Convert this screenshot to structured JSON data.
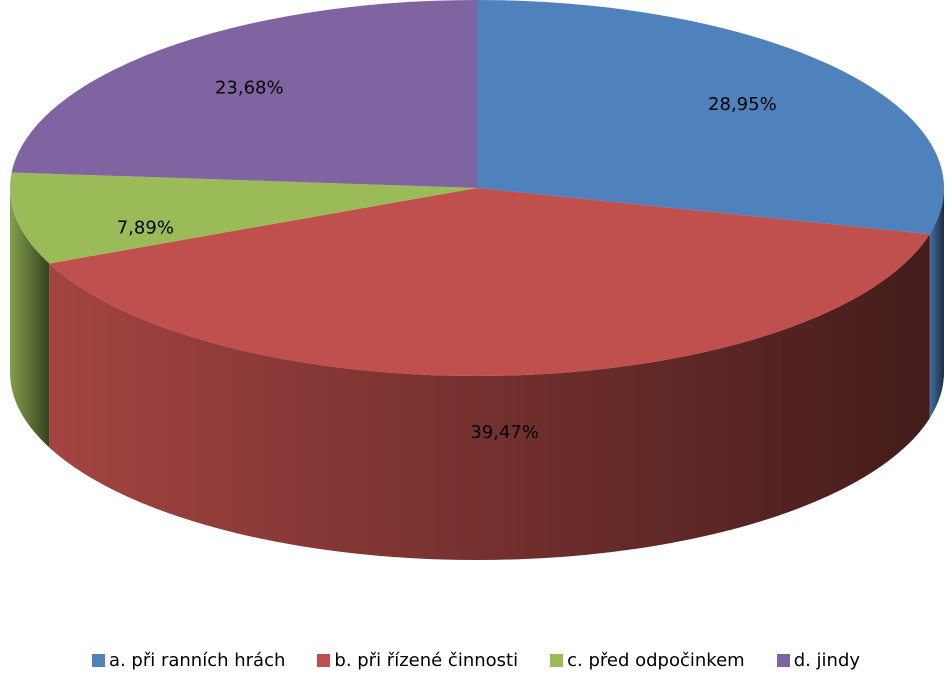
{
  "chart_data": {
    "type": "pie3d",
    "categories": [
      "a. při ranních hrách",
      "b. při řízené činnosti",
      "c. před odpočinkem",
      "d. jindy"
    ],
    "values": [
      28.95,
      39.47,
      7.89,
      23.68
    ],
    "value_labels": [
      "28,95%",
      "39,47%",
      "7,89%",
      "23,68%"
    ],
    "colors": [
      "#4f81bd",
      "#c0504d",
      "#9bbb59",
      "#8064a2"
    ],
    "legend": "bottom"
  }
}
